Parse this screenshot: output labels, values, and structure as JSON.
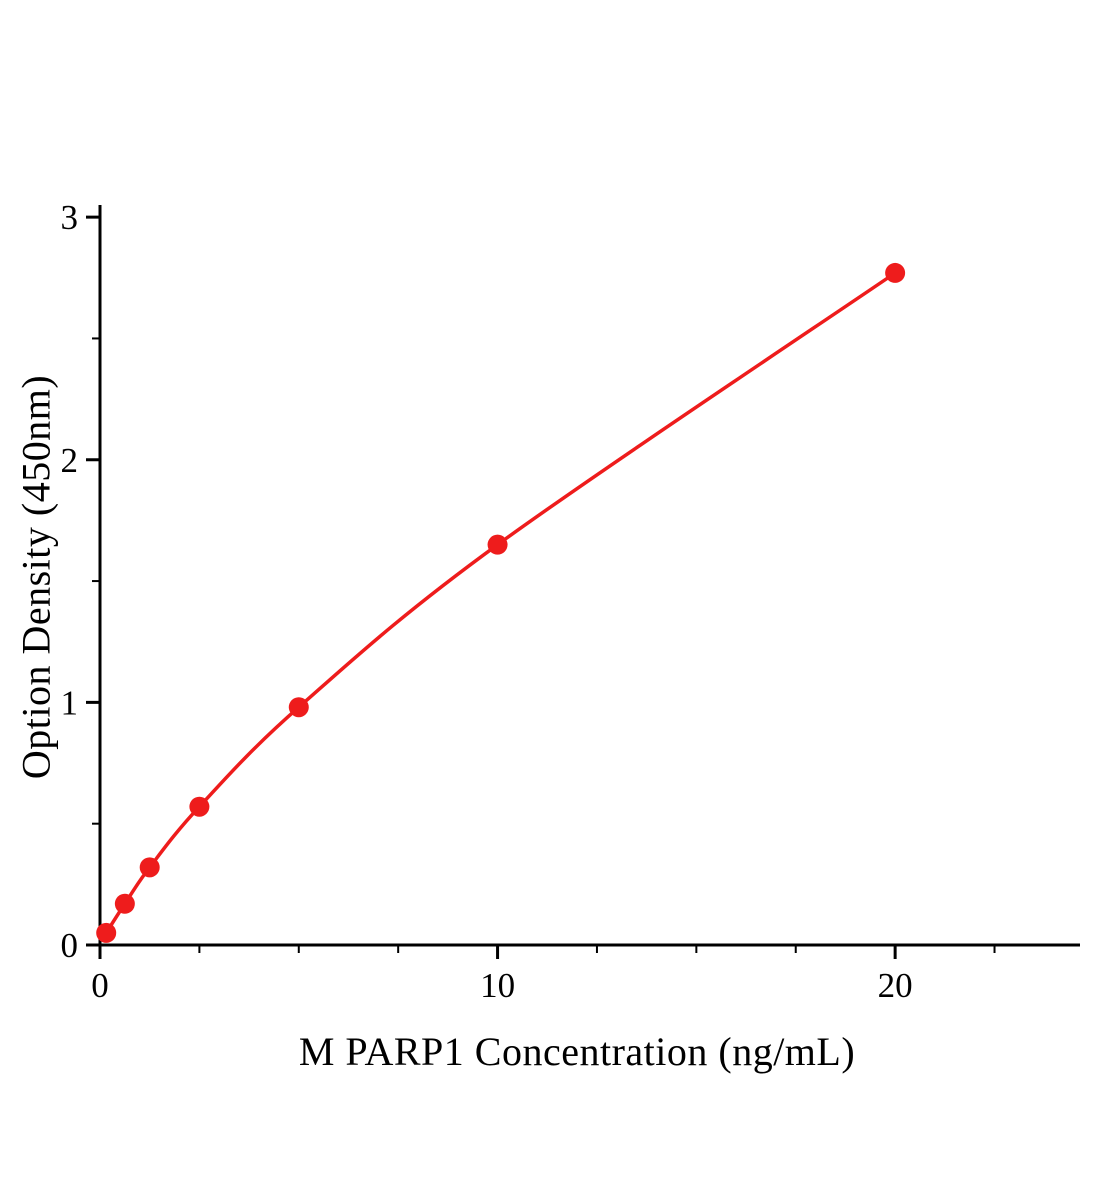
{
  "chart_data": {
    "type": "scatter",
    "title": "",
    "xlabel": "M PARP1 Concentration (ng/mL)",
    "ylabel": "Option Density (450nm)",
    "x": [
      0.156,
      0.625,
      1.25,
      2.5,
      5,
      10,
      20
    ],
    "y": [
      0.05,
      0.17,
      0.32,
      0.57,
      0.98,
      1.65,
      2.77
    ],
    "xlim": [
      0,
      24.65
    ],
    "ylim": [
      0,
      3.05
    ],
    "x_major_ticks": [
      0,
      10,
      20
    ],
    "x_minor_ticks": [
      2.5,
      5,
      7.5,
      12.5,
      15,
      17.5,
      22.5
    ],
    "y_major_ticks": [
      0,
      1,
      2,
      3
    ],
    "y_minor_ticks": [
      0.5,
      1.5,
      2.5
    ],
    "legend": "none",
    "grid": "off",
    "line_color": "#ee1c1c",
    "marker_color": "#ee1c1c",
    "axis_color": "#000000"
  }
}
